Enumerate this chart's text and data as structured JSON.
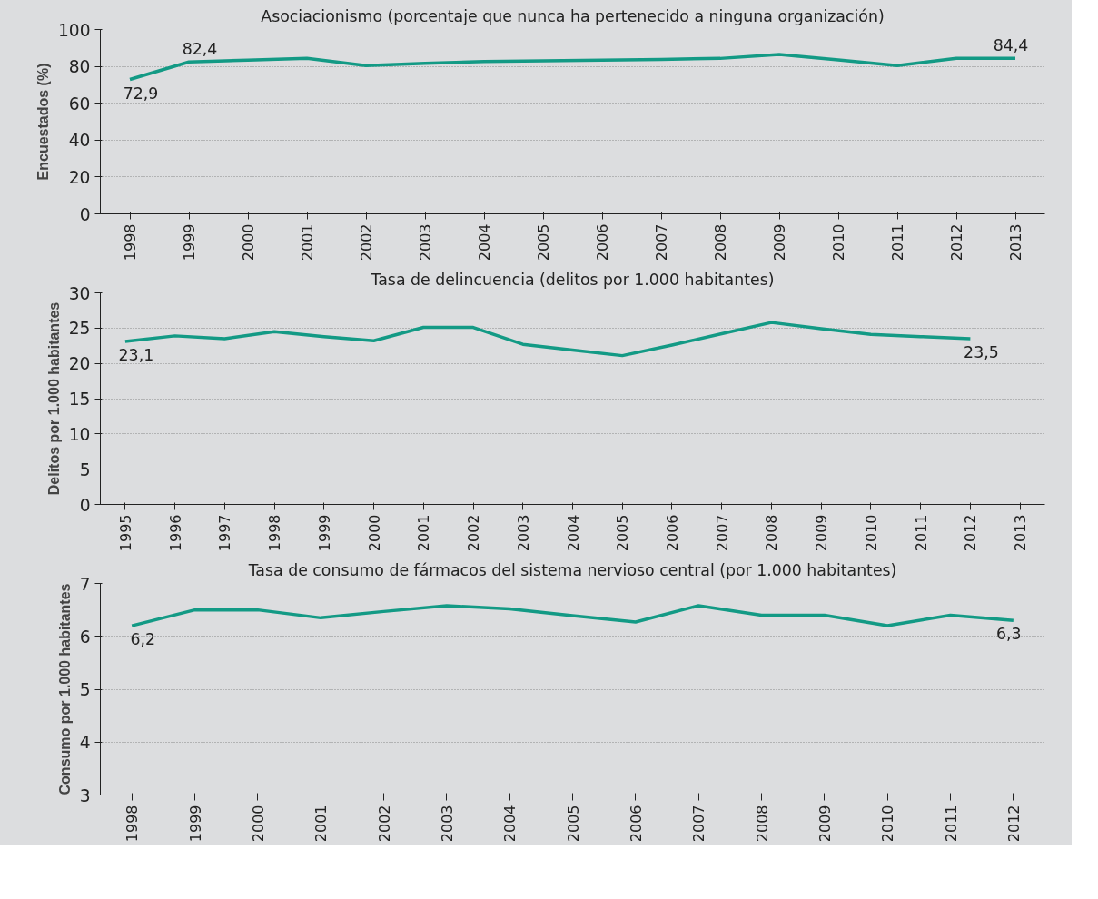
{
  "chart_data": [
    {
      "type": "line",
      "title": "Asociacionismo (porcentaje que nunca ha pertenecido a ninguna organización)",
      "ylabel": "Encuestados (%)",
      "categories": [
        "1998",
        "1999",
        "2000",
        "2001",
        "2002",
        "2003",
        "2004",
        "2005",
        "2006",
        "2007",
        "2008",
        "2009",
        "2010",
        "2011",
        "2012",
        "2013"
      ],
      "series": [
        {
          "color": "#139a85",
          "values": [
            72.9,
            82.4,
            83.4,
            84.4,
            80.4,
            81.6,
            82.6,
            83.0,
            83.4,
            83.8,
            84.3,
            86.5,
            83.5,
            80.4,
            84.4,
            84.4
          ]
        }
      ],
      "ylim": [
        0,
        100
      ],
      "yticks": [
        0,
        20,
        40,
        60,
        80,
        100
      ],
      "grid": "y",
      "annotations": [
        {
          "text": "72,9",
          "x": "1998",
          "y": 72.9
        },
        {
          "text": "82,4",
          "x": "1999",
          "y": 82.4
        },
        {
          "text": "84,4",
          "x": "2013",
          "y": 84.4
        }
      ]
    },
    {
      "type": "line",
      "title": "Tasa de delincuencia (delitos por 1.000 habitantes)",
      "ylabel": "Delitos por 1.000 habitantes",
      "categories": [
        "1995",
        "1996",
        "1997",
        "1998",
        "1999",
        "2000",
        "2001",
        "2002",
        "2003",
        "2004",
        "2005",
        "2006",
        "2007",
        "2008",
        "2009",
        "2010",
        "2011",
        "2012",
        "2013"
      ],
      "series": [
        {
          "color": "#139a85",
          "values": [
            23.1,
            23.9,
            23.5,
            24.5,
            23.8,
            23.2,
            25.1,
            25.1,
            22.7,
            21.9,
            21.1,
            22.6,
            24.2,
            25.8,
            24.9,
            24.1,
            23.8,
            23.5,
            null
          ]
        }
      ],
      "ylim": [
        0,
        30
      ],
      "yticks": [
        0,
        5,
        10,
        15,
        20,
        25,
        30
      ],
      "grid": "y",
      "annotations": [
        {
          "text": "23,1",
          "x": "1995",
          "y": 23.1
        },
        {
          "text": "23,5",
          "x": "2012",
          "y": 23.5
        }
      ]
    },
    {
      "type": "line",
      "title": "Tasa de consumo de fármacos del sistema nervioso central (por 1.000 habitantes)",
      "ylabel": "Consumo por 1.000 habitantes",
      "categories": [
        "1998",
        "1999",
        "2000",
        "2001",
        "2002",
        "2003",
        "2004",
        "2005",
        "2006",
        "2007",
        "2008",
        "2009",
        "2010",
        "2011",
        "2012"
      ],
      "series": [
        {
          "color": "#139a85",
          "values": [
            6.2,
            6.5,
            6.5,
            6.35,
            6.47,
            6.58,
            6.52,
            6.39,
            6.27,
            6.58,
            6.4,
            6.4,
            6.2,
            6.4,
            6.3
          ]
        }
      ],
      "ylim": [
        3,
        7
      ],
      "yticks": [
        3,
        4,
        5,
        6,
        7
      ],
      "grid": "y",
      "annotations": [
        {
          "text": "6,2",
          "x": "1998",
          "y": 6.2
        },
        {
          "text": "6,3",
          "x": "2012",
          "y": 6.3
        }
      ]
    }
  ]
}
